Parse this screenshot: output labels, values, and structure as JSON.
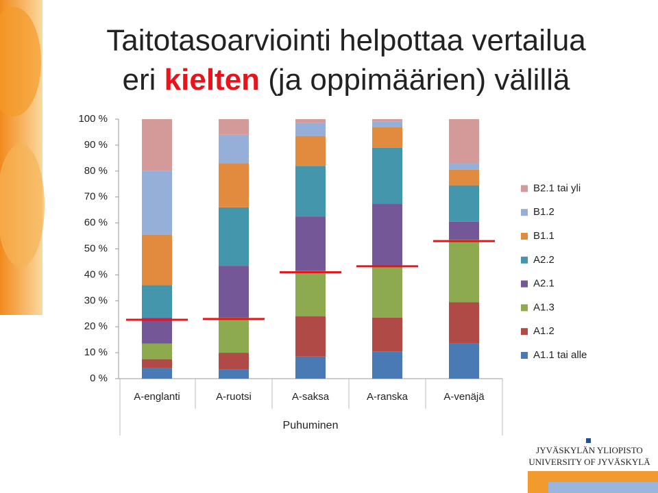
{
  "slide": {
    "title_line1": "Taitotasoarviointi helpottaa vertailua",
    "title_line2": [
      "eri",
      "kielten",
      "(ja oppimäärien) välillä"
    ],
    "logo": [
      "JYVÄSKYLÄN YLIOPISTO",
      "UNIVERSITY OF JYVÄSKYLÄ"
    ]
  },
  "chart_data": {
    "type": "stacked_bar",
    "x_label": "Puhuminen",
    "categories": [
      "A-englanti",
      "A-ruotsi",
      "A-saksa",
      "A-ranska",
      "A-venäjä"
    ],
    "series": [
      {
        "name": "A1.1 tai alle",
        "color": "#4a7ab4",
        "values": [
          4,
          3.5,
          8.5,
          10.5,
          13.5
        ]
      },
      {
        "name": "A1.2",
        "color": "#b04a47",
        "values": [
          3.5,
          6.5,
          15.5,
          13,
          16
        ]
      },
      {
        "name": "A1.3",
        "color": "#8eaa4e",
        "values": [
          6,
          13.5,
          17.5,
          20,
          24
        ]
      },
      {
        "name": "A2.1",
        "color": "#735796",
        "values": [
          10,
          20,
          21,
          24,
          7
        ]
      },
      {
        "name": "A2.2",
        "color": "#4496ad",
        "values": [
          12.5,
          22.5,
          19.5,
          21.5,
          14
        ]
      },
      {
        "name": "B1.1",
        "color": "#e08b3e",
        "values": [
          19.5,
          17,
          11.5,
          8,
          6
        ]
      },
      {
        "name": "B1.2",
        "color": "#95afd8",
        "values": [
          24.5,
          11,
          5,
          2,
          2.5
        ]
      },
      {
        "name": "B2.1 tai yli",
        "color": "#d49a9a",
        "values": [
          20,
          6,
          1.5,
          1,
          17
        ]
      }
    ],
    "markers": {
      "color": "#e8141b",
      "values": [
        22.7,
        23,
        41,
        43.3,
        53
      ]
    },
    "ylim": [
      0,
      100
    ],
    "yticks": [
      {
        "value": 0,
        "label": "0 %"
      },
      {
        "value": 10,
        "label": "10 %"
      },
      {
        "value": 20,
        "label": "20 %"
      },
      {
        "value": 30,
        "label": "30 %"
      },
      {
        "value": 40,
        "label": "40 %"
      },
      {
        "value": 50,
        "label": "50 %"
      },
      {
        "value": 60,
        "label": "60 %"
      },
      {
        "value": 70,
        "label": "70 %"
      },
      {
        "value": 80,
        "label": "80 %"
      },
      {
        "value": 90,
        "label": "90 %"
      },
      {
        "value": 100,
        "label": "100 %"
      }
    ],
    "grid": false,
    "legend": "right"
  }
}
